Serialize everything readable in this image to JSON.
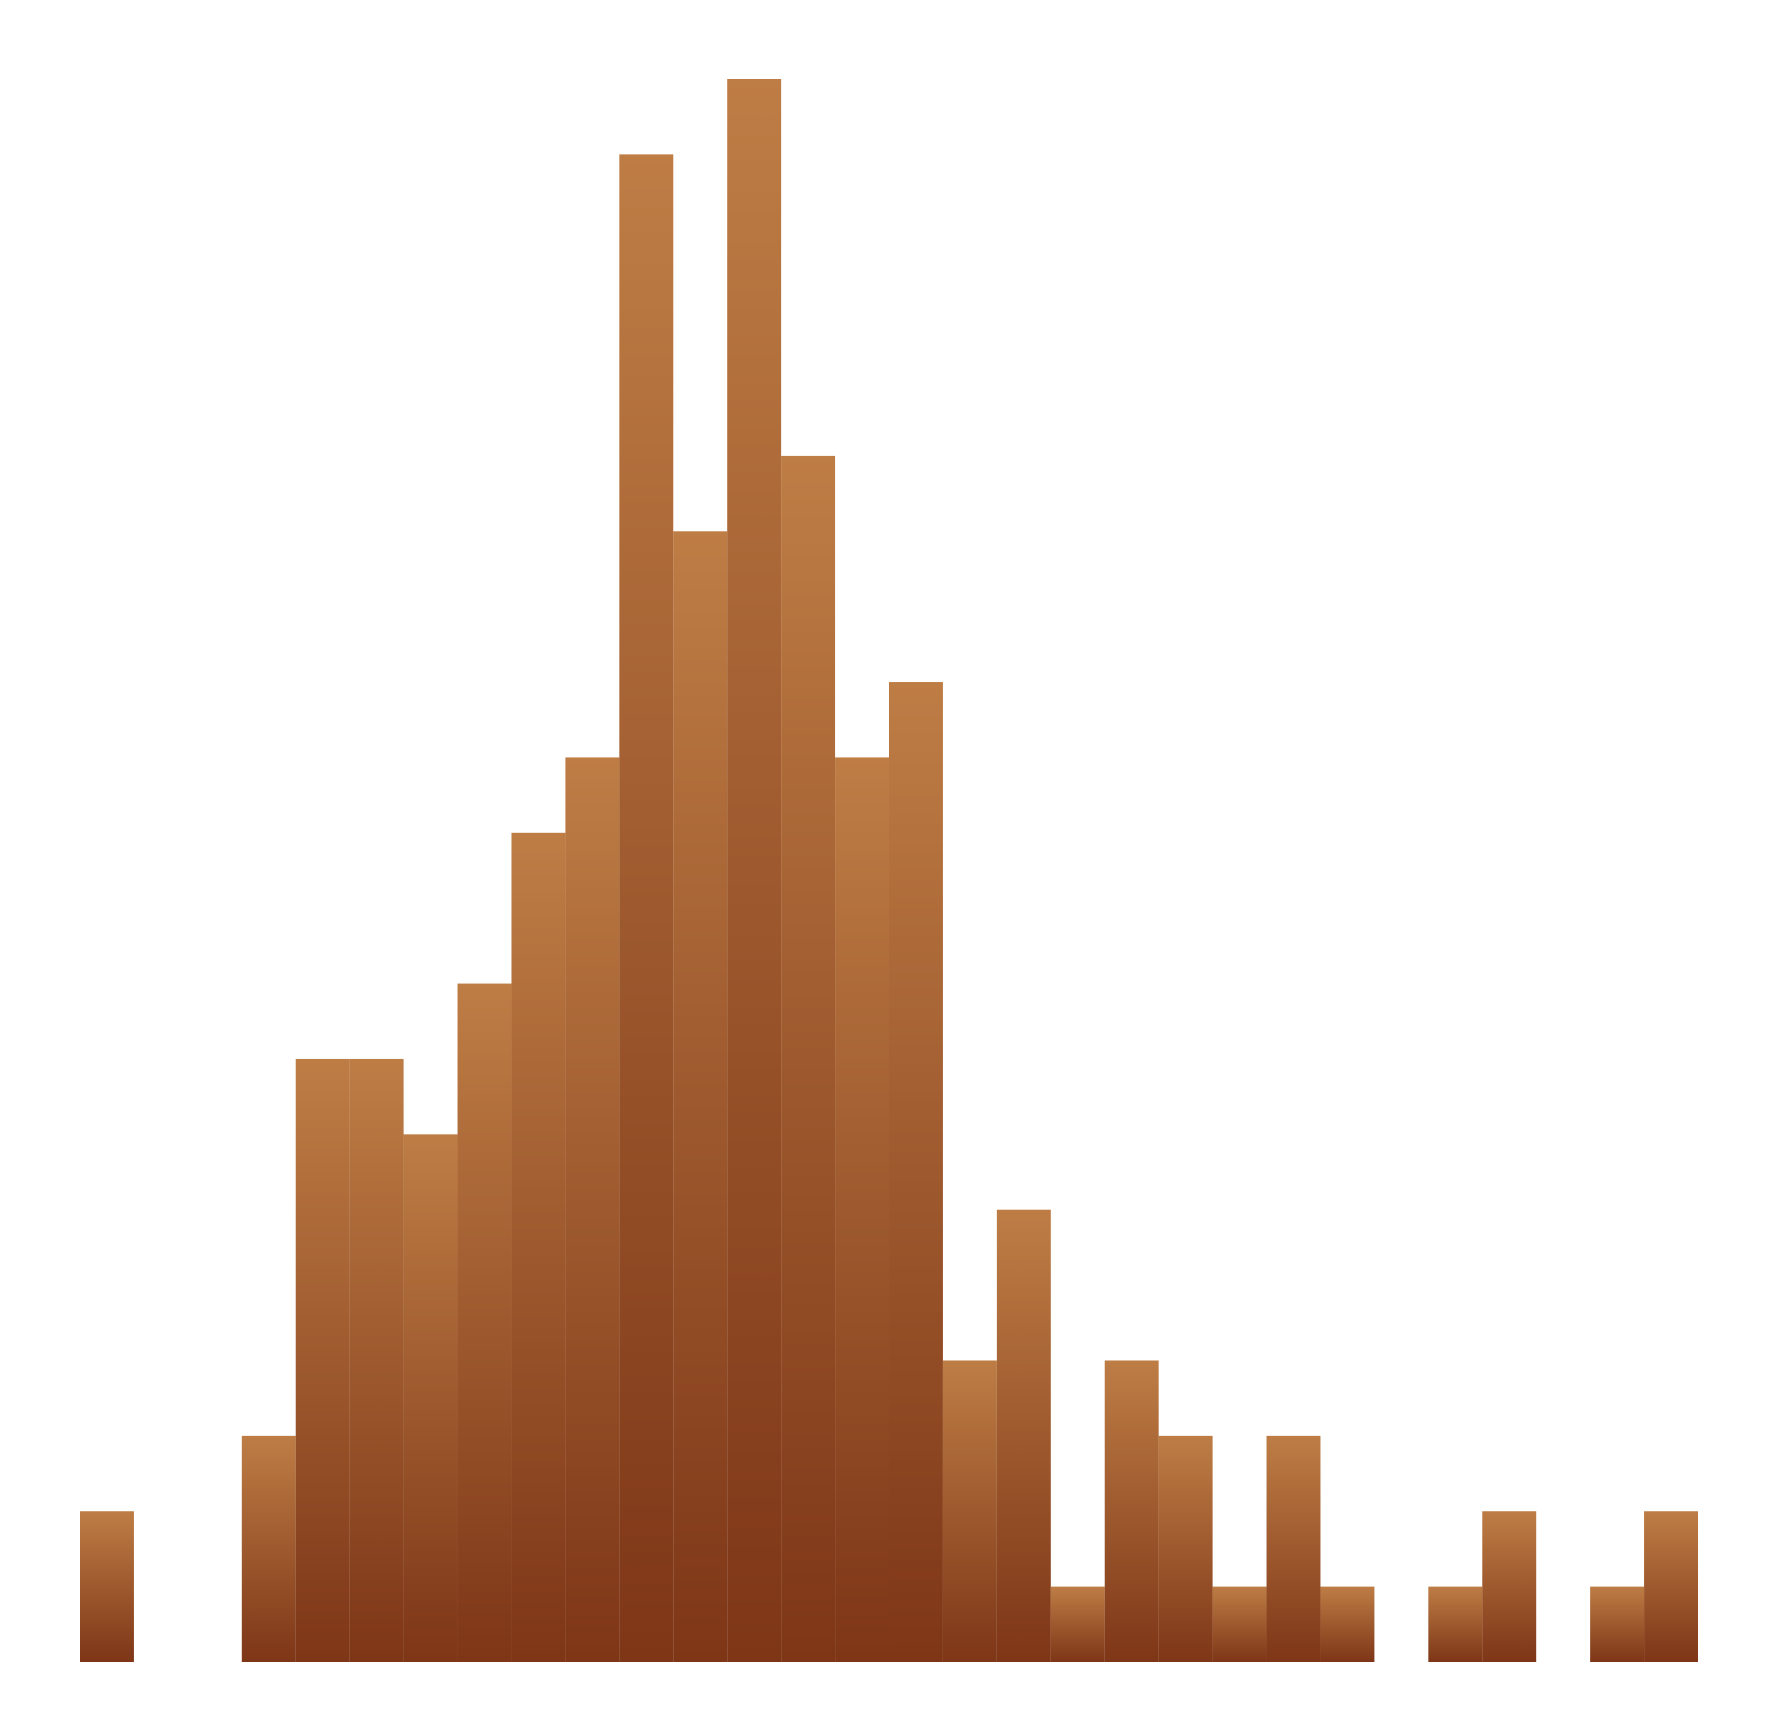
{
  "chart_data": {
    "type": "bar",
    "title": "",
    "xlabel": "",
    "ylabel": "",
    "bins": 30,
    "values": [
      2,
      0,
      0,
      3,
      8,
      8,
      7,
      9,
      11,
      12,
      20,
      15,
      21,
      16,
      12,
      13,
      4,
      6,
      1,
      4,
      3,
      1,
      3,
      1,
      0,
      1,
      2,
      0,
      1,
      2
    ],
    "ylim": [
      0,
      21
    ],
    "axes_visible": false,
    "grid": false,
    "legend": "none",
    "colors": {
      "bar_top": "#be7d45",
      "bar_bottom": "#7e3617",
      "background": "#ffffff"
    }
  }
}
